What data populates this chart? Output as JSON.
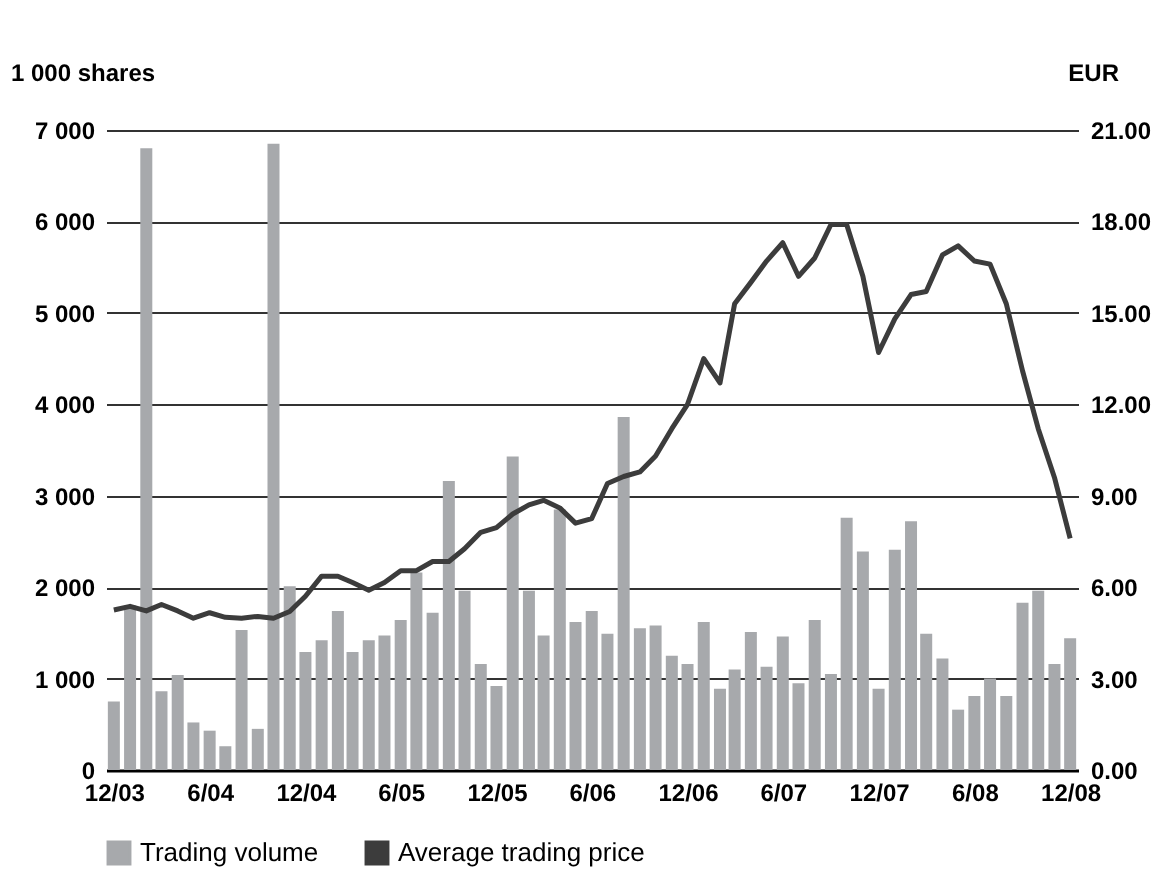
{
  "chart_data": {
    "type": "bar",
    "ylabel": "1 000 shares",
    "y2label": "EUR",
    "x": [
      "2003-12",
      "2004-01",
      "2004-02",
      "2004-03",
      "2004-04",
      "2004-05",
      "2004-06",
      "2004-07",
      "2004-08",
      "2004-09",
      "2004-10",
      "2004-11",
      "2004-12",
      "2005-01",
      "2005-02",
      "2005-03",
      "2005-04",
      "2005-05",
      "2005-06",
      "2005-07",
      "2005-08",
      "2005-09",
      "2005-10",
      "2005-11",
      "2005-12",
      "2006-01",
      "2006-02",
      "2006-03",
      "2006-04",
      "2006-05",
      "2006-06",
      "2006-07",
      "2006-08",
      "2006-09",
      "2006-10",
      "2006-11",
      "2006-12",
      "2007-01",
      "2007-02",
      "2007-03",
      "2007-04",
      "2007-05",
      "2007-06",
      "2007-07",
      "2007-08",
      "2007-09",
      "2007-10",
      "2007-11",
      "2007-12",
      "2008-01",
      "2008-02",
      "2008-03",
      "2008-04",
      "2008-05",
      "2008-06",
      "2008-07",
      "2008-08",
      "2008-09",
      "2008-10",
      "2008-11",
      "2008-12"
    ],
    "series": [
      {
        "name": "Trading volume",
        "color": "#a7a9ac",
        "values": [
          750,
          1800,
          6800,
          860,
          1040,
          520,
          430,
          260,
          1530,
          450,
          6850,
          2010,
          1290,
          1420,
          1740,
          1290,
          1420,
          1470,
          1640,
          2160,
          1720,
          3160,
          1960,
          1160,
          920,
          3430,
          1960,
          1470,
          2850,
          1620,
          1740,
          1490,
          3860,
          1550,
          1580,
          1250,
          1160,
          1620,
          890,
          1100,
          1510,
          1130,
          1460,
          950,
          1640,
          1050,
          2760,
          2390,
          890,
          2410,
          2720,
          1490,
          1220,
          660,
          810,
          1000,
          810,
          1830,
          1960,
          1160,
          1440
        ]
      },
      {
        "name": "Average trading price",
        "type": "line",
        "axis": "y2",
        "color": "#3c3c3c",
        "values": [
          5.25,
          5.37,
          5.22,
          5.43,
          5.22,
          4.98,
          5.16,
          5.01,
          4.98,
          5.04,
          4.98,
          5.2,
          5.7,
          6.36,
          6.36,
          6.15,
          5.9,
          6.15,
          6.54,
          6.54,
          6.84,
          6.84,
          7.26,
          7.8,
          7.95,
          8.4,
          8.7,
          8.85,
          8.6,
          8.1,
          8.25,
          9.4,
          9.63,
          9.78,
          10.3,
          11.2,
          12.0,
          13.5,
          12.7,
          15.3,
          16.0,
          16.7,
          17.3,
          16.2,
          16.8,
          17.9,
          17.9,
          16.2,
          13.7,
          14.8,
          15.6,
          15.7,
          16.9,
          17.2,
          16.7,
          16.6,
          15.3,
          13.1,
          11.2,
          9.6,
          7.6
        ]
      }
    ],
    "xlim": [
      "2003-11-16",
      "2008-12-16"
    ],
    "xticks": [
      {
        "value": "2003-12",
        "label": "12/03"
      },
      {
        "value": "2004-06",
        "label": "6/04"
      },
      {
        "value": "2004-12",
        "label": "12/04"
      },
      {
        "value": "2005-06",
        "label": "6/05"
      },
      {
        "value": "2005-12",
        "label": "12/05"
      },
      {
        "value": "2006-06",
        "label": "6/06"
      },
      {
        "value": "2006-12",
        "label": "12/06"
      },
      {
        "value": "2007-06",
        "label": "6/07"
      },
      {
        "value": "2007-12",
        "label": "12/07"
      },
      {
        "value": "2008-06",
        "label": "6/08"
      },
      {
        "value": "2008-12",
        "label": "12/08"
      }
    ],
    "ylim": [
      0,
      7000
    ],
    "yticks": [
      {
        "value": 0,
        "label": "0"
      },
      {
        "value": 1000,
        "label": "1 000"
      },
      {
        "value": 2000,
        "label": "2 000"
      },
      {
        "value": 3000,
        "label": "3 000"
      },
      {
        "value": 4000,
        "label": "4 000"
      },
      {
        "value": 5000,
        "label": "5 000"
      },
      {
        "value": 6000,
        "label": "6 000"
      },
      {
        "value": 7000,
        "label": "7 000"
      }
    ],
    "y2lim": [
      0,
      21
    ],
    "y2ticks": [
      {
        "value": 0,
        "label": "0.00"
      },
      {
        "value": 3,
        "label": "3.00"
      },
      {
        "value": 6,
        "label": "6.00"
      },
      {
        "value": 9,
        "label": "9.00"
      },
      {
        "value": 12,
        "label": "12.00"
      },
      {
        "value": 15,
        "label": "15.00"
      },
      {
        "value": 18,
        "label": "18.00"
      },
      {
        "value": 21,
        "label": "21.00"
      }
    ],
    "grid": "y",
    "legend": "bottom",
    "line_style": "solid",
    "marker": "none"
  }
}
